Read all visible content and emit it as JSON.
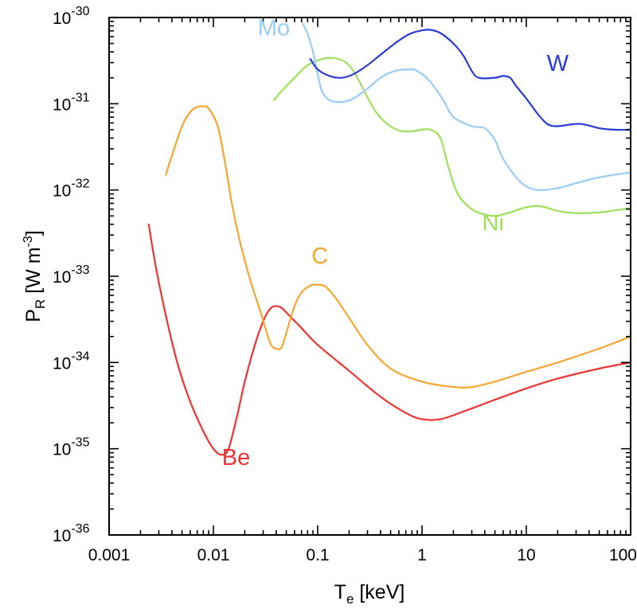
{
  "chart_data": {
    "type": "line",
    "title": "",
    "xlabel": {
      "base": "T",
      "sub": "e",
      "rest": " [keV]"
    },
    "ylabel": {
      "base": "P",
      "sub": "R",
      "unit_open": " [W m",
      "unit_sup": "-3",
      "unit_close": "]"
    },
    "xscale": "log",
    "yscale": "log",
    "xlim": [
      0.001,
      100
    ],
    "ylim": [
      1e-36,
      1e-30
    ],
    "grid": false,
    "legend": "none",
    "x_ticks": [
      {
        "value": 0.001,
        "label": "0.001"
      },
      {
        "value": 0.01,
        "label": "0.01"
      },
      {
        "value": 0.1,
        "label": "0.1"
      },
      {
        "value": 1,
        "label": "1"
      },
      {
        "value": 10,
        "label": "10"
      },
      {
        "value": 100,
        "label": "100"
      }
    ],
    "y_ticks": [
      {
        "value": 1e-30,
        "base": "10",
        "exp": "-30"
      },
      {
        "value": 1e-31,
        "base": "10",
        "exp": "-31"
      },
      {
        "value": 1e-32,
        "base": "10",
        "exp": "-32"
      },
      {
        "value": 1e-33,
        "base": "10",
        "exp": "-33"
      },
      {
        "value": 1e-34,
        "base": "10",
        "exp": "-34"
      },
      {
        "value": 1e-35,
        "base": "10",
        "exp": "-35"
      },
      {
        "value": 1e-36,
        "base": "10",
        "exp": "-36"
      }
    ],
    "series": [
      {
        "name": "Be",
        "color": "#ee3333",
        "label_at": [
          0.0165,
          6.5e-36
        ],
        "points": [
          [
            0.0024,
            4e-33
          ],
          [
            0.0028,
            1.3e-33
          ],
          [
            0.0035,
            3.5e-34
          ],
          [
            0.0045,
            1e-34
          ],
          [
            0.006,
            3.5e-35
          ],
          [
            0.008,
            1.6e-35
          ],
          [
            0.01,
            1e-35
          ],
          [
            0.012,
            8.5e-36
          ],
          [
            0.014,
            1e-35
          ],
          [
            0.017,
            2.5e-35
          ],
          [
            0.02,
            6e-35
          ],
          [
            0.025,
            1.6e-34
          ],
          [
            0.03,
            3e-34
          ],
          [
            0.035,
            4.2e-34
          ],
          [
            0.04,
            4.5e-34
          ],
          [
            0.045,
            4.3e-34
          ],
          [
            0.05,
            3.8e-34
          ],
          [
            0.07,
            2.5e-34
          ],
          [
            0.1,
            1.6e-34
          ],
          [
            0.2,
            8e-35
          ],
          [
            0.4,
            4e-35
          ],
          [
            0.7,
            2.6e-35
          ],
          [
            1,
            2.2e-35
          ],
          [
            1.5,
            2.2e-35
          ],
          [
            2.5,
            2.7e-35
          ],
          [
            5,
            3.7e-35
          ],
          [
            10,
            5e-35
          ],
          [
            20,
            6.5e-35
          ],
          [
            50,
            8.5e-35
          ],
          [
            100,
            1e-34
          ]
        ]
      },
      {
        "name": "C",
        "color": "#f7a531",
        "label_at": [
          0.105,
          1.4e-33
        ],
        "points": [
          [
            0.0035,
            1.5e-32
          ],
          [
            0.004,
            2.5e-32
          ],
          [
            0.005,
            5.5e-32
          ],
          [
            0.006,
            8e-32
          ],
          [
            0.007,
            9.2e-32
          ],
          [
            0.008,
            9.3e-32
          ],
          [
            0.009,
            8.8e-32
          ],
          [
            0.011,
            5.5e-32
          ],
          [
            0.013,
            2e-32
          ],
          [
            0.015,
            7e-33
          ],
          [
            0.018,
            2.5e-33
          ],
          [
            0.022,
            1e-33
          ],
          [
            0.028,
            4e-34
          ],
          [
            0.035,
            1.7e-34
          ],
          [
            0.04,
            1.45e-34
          ],
          [
            0.045,
            1.5e-34
          ],
          [
            0.05,
            2.2e-34
          ],
          [
            0.06,
            4.5e-34
          ],
          [
            0.07,
            6.5e-34
          ],
          [
            0.085,
            7.8e-34
          ],
          [
            0.1,
            8e-34
          ],
          [
            0.12,
            7.5e-34
          ],
          [
            0.15,
            5.5e-34
          ],
          [
            0.2,
            3.3e-34
          ],
          [
            0.3,
            1.6e-34
          ],
          [
            0.5,
            8.5e-35
          ],
          [
            1,
            6e-35
          ],
          [
            2,
            5.2e-35
          ],
          [
            3,
            5.2e-35
          ],
          [
            5,
            6e-35
          ],
          [
            10,
            7.8e-35
          ],
          [
            20,
            1e-34
          ],
          [
            50,
            1.45e-34
          ],
          [
            100,
            2e-34
          ]
        ]
      },
      {
        "name": "Ni",
        "color": "#9ee05a",
        "label_at": [
          4.8,
          3.4e-33
        ],
        "points": [
          [
            0.038,
            1.1e-31
          ],
          [
            0.045,
            1.4e-31
          ],
          [
            0.06,
            2e-31
          ],
          [
            0.08,
            2.8e-31
          ],
          [
            0.11,
            3.3e-31
          ],
          [
            0.14,
            3.4e-31
          ],
          [
            0.18,
            3.1e-31
          ],
          [
            0.22,
            2.4e-31
          ],
          [
            0.28,
            1.4e-31
          ],
          [
            0.35,
            8.5e-32
          ],
          [
            0.45,
            6e-32
          ],
          [
            0.6,
            4.9e-32
          ],
          [
            0.8,
            4.8e-32
          ],
          [
            1,
            5e-32
          ],
          [
            1.2,
            5e-32
          ],
          [
            1.5,
            4e-32
          ],
          [
            1.8,
            1.8e-32
          ],
          [
            2.2,
            9e-33
          ],
          [
            3,
            6e-33
          ],
          [
            4,
            5.2e-33
          ],
          [
            5,
            5e-33
          ],
          [
            6,
            5.2e-33
          ],
          [
            8,
            5.8e-33
          ],
          [
            10,
            6.3e-33
          ],
          [
            13,
            6.5e-33
          ],
          [
            16,
            6.2e-33
          ],
          [
            20,
            5.7e-33
          ],
          [
            30,
            5.4e-33
          ],
          [
            50,
            5.5e-33
          ],
          [
            70,
            5.8e-33
          ],
          [
            100,
            6.2e-33
          ]
        ]
      },
      {
        "name": "Mo",
        "color": "#99ccf5",
        "label_at": [
          0.038,
          6.2e-31
        ],
        "points": [
          [
            0.072,
            8.5e-31
          ],
          [
            0.08,
            6.5e-31
          ],
          [
            0.09,
            4e-31
          ],
          [
            0.1,
            2.2e-31
          ],
          [
            0.11,
            1.4e-31
          ],
          [
            0.13,
            1.1e-31
          ],
          [
            0.17,
            1.05e-31
          ],
          [
            0.22,
            1.15e-31
          ],
          [
            0.3,
            1.5e-31
          ],
          [
            0.4,
            2e-31
          ],
          [
            0.55,
            2.4e-31
          ],
          [
            0.75,
            2.5e-31
          ],
          [
            0.9,
            2.4e-31
          ],
          [
            1.2,
            1.8e-31
          ],
          [
            1.6,
            1.1e-31
          ],
          [
            2,
            7e-32
          ],
          [
            3,
            5.5e-32
          ],
          [
            4,
            5.2e-32
          ],
          [
            5,
            3.8e-32
          ],
          [
            6,
            2.3e-32
          ],
          [
            8,
            1.4e-32
          ],
          [
            10,
            1.1e-32
          ],
          [
            13,
            1e-32
          ],
          [
            20,
            1.05e-32
          ],
          [
            30,
            1.2e-32
          ],
          [
            50,
            1.4e-32
          ],
          [
            100,
            1.6e-32
          ]
        ]
      },
      {
        "name": "W",
        "color": "#2a3bd6",
        "label_at": [
          20,
          2.4e-31
        ],
        "points": [
          [
            0.085,
            3.3e-31
          ],
          [
            0.1,
            2.5e-31
          ],
          [
            0.13,
            2.1e-31
          ],
          [
            0.17,
            2e-31
          ],
          [
            0.22,
            2.2e-31
          ],
          [
            0.3,
            2.8e-31
          ],
          [
            0.4,
            3.7e-31
          ],
          [
            0.55,
            5e-31
          ],
          [
            0.75,
            6.4e-31
          ],
          [
            1,
            7.1e-31
          ],
          [
            1.2,
            7.2e-31
          ],
          [
            1.5,
            6.6e-31
          ],
          [
            2,
            5e-31
          ],
          [
            2.5,
            3.6e-31
          ],
          [
            3,
            2.4e-31
          ],
          [
            3.5,
            2e-31
          ],
          [
            5,
            2e-31
          ],
          [
            6,
            2.1e-31
          ],
          [
            7,
            2e-31
          ],
          [
            8,
            1.6e-31
          ],
          [
            10,
            1.15e-31
          ],
          [
            13,
            7.5e-32
          ],
          [
            16,
            5.8e-32
          ],
          [
            20,
            5.5e-32
          ],
          [
            28,
            5.8e-32
          ],
          [
            35,
            5.8e-32
          ],
          [
            50,
            5.2e-32
          ],
          [
            70,
            5e-32
          ],
          [
            100,
            5e-32
          ]
        ]
      }
    ]
  }
}
